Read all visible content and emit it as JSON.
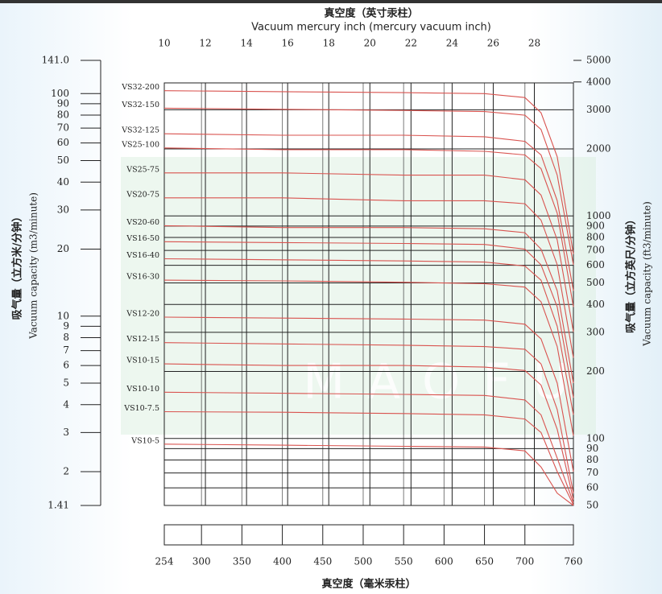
{
  "chart_data": {
    "type": "line",
    "title": "真空度（英寸汞柱）",
    "subtitle": "Vacuum  mercury inch (mercury vacuum inch)",
    "x_label": "真空度（毫米汞柱）",
    "y_label": "吸气量（立方米/分钟）",
    "y_label_en": "Vacuum capacity (m3/minute)",
    "y2_label": "吸气量（立方英尺/分钟）",
    "y2_label_en": "Vacuum capacity (ft3/minute)",
    "watermark": "MAOFU",
    "log_scale": true,
    "grid": true,
    "color": "#d9534f",
    "x": [
      254,
      400,
      550,
      650,
      700,
      720,
      740,
      760
    ],
    "xlim": [
      254,
      760
    ],
    "xticks": [
      254,
      300,
      350,
      400,
      450,
      500,
      550,
      600,
      650,
      700,
      760
    ],
    "x2lim": [
      10,
      29.9
    ],
    "x2ticks": [
      10,
      12,
      14,
      16,
      18,
      20,
      22,
      24,
      26,
      28
    ],
    "ylim": [
      1.41,
      141
    ],
    "yticks": [
      {
        "value": 141,
        "label": "141.0"
      },
      100,
      90,
      80,
      70,
      60,
      50,
      40,
      30,
      20,
      10,
      9,
      8,
      7,
      6,
      5,
      4,
      3,
      2,
      1.41
    ],
    "y2lim": [
      50,
      5000
    ],
    "y2ticks": [
      5000,
      4000,
      3000,
      2000,
      1000,
      900,
      800,
      700,
      600,
      500,
      400,
      300,
      200,
      100,
      90,
      80,
      70,
      60,
      50
    ],
    "series": [
      {
        "name": "VS32-200",
        "values": [
          103,
          102,
          101,
          100,
          96,
          82,
          52,
          19
        ]
      },
      {
        "name": "VS32-150",
        "values": [
          86,
          85,
          84,
          83,
          80,
          69,
          43,
          17
        ]
      },
      {
        "name": "VS32-125",
        "values": [
          66,
          65,
          65,
          64,
          61,
          53,
          33,
          13
        ]
      },
      {
        "name": "VS25-100",
        "values": [
          57,
          56,
          56,
          55,
          53,
          46,
          29,
          11
        ]
      },
      {
        "name": "VS25-75",
        "values": [
          44,
          44,
          43,
          43,
          41,
          35,
          22,
          8.5
        ]
      },
      {
        "name": "VS20-75",
        "values": [
          34,
          34,
          33,
          33,
          32,
          27,
          17,
          6.5
        ]
      },
      {
        "name": "VS20-60",
        "values": [
          25.5,
          25,
          25,
          24.7,
          23.7,
          20,
          13,
          5
        ]
      },
      {
        "name": "VS16-50",
        "values": [
          21.6,
          21.4,
          21.2,
          21,
          20,
          17,
          11,
          4.3
        ]
      },
      {
        "name": "VS16-40",
        "values": [
          18.1,
          17.9,
          17.7,
          17.5,
          16.8,
          14.5,
          9,
          3.6
        ]
      },
      {
        "name": "VS16-30",
        "values": [
          14.5,
          14.4,
          14.2,
          14,
          13.5,
          11.6,
          7.3,
          2.9
        ]
      },
      {
        "name": "VS12-20",
        "values": [
          9.9,
          9.8,
          9.7,
          9.6,
          9.2,
          7.9,
          5,
          2
        ]
      },
      {
        "name": "VS12-15",
        "values": [
          7.6,
          7.5,
          7.4,
          7.3,
          7.1,
          6.1,
          3.8,
          1.6
        ]
      },
      {
        "name": "VS10-15",
        "values": [
          6.1,
          6,
          6,
          5.9,
          5.7,
          4.9,
          3.1,
          1.5
        ]
      },
      {
        "name": "VS10-10",
        "values": [
          4.55,
          4.5,
          4.45,
          4.4,
          4.2,
          3.6,
          2.3,
          1.45
        ]
      },
      {
        "name": "VS10-7.5",
        "values": [
          3.72,
          3.7,
          3.65,
          3.6,
          3.45,
          3,
          2,
          1.42
        ]
      },
      {
        "name": "VS10-5",
        "values": [
          2.66,
          2.63,
          2.6,
          2.58,
          2.48,
          2.1,
          1.6,
          1.41
        ]
      }
    ]
  }
}
